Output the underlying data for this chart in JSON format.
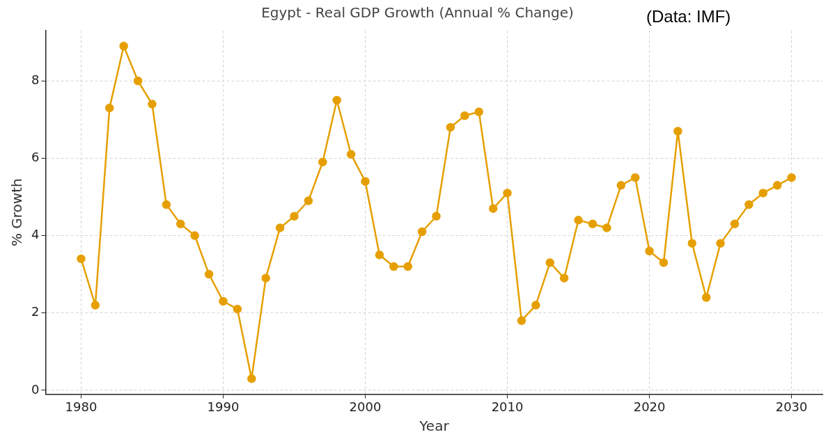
{
  "chart_data": {
    "type": "line",
    "title": "Egypt - Real GDP Growth (Annual % Change)",
    "xlabel": "Year",
    "ylabel": "% Growth",
    "annotations": [
      "(Data: IMF)"
    ],
    "x": [
      1980,
      1981,
      1982,
      1983,
      1984,
      1985,
      1986,
      1987,
      1988,
      1989,
      1990,
      1991,
      1992,
      1993,
      1994,
      1995,
      1996,
      1997,
      1998,
      1999,
      2000,
      2001,
      2002,
      2003,
      2004,
      2005,
      2006,
      2007,
      2008,
      2009,
      2010,
      2011,
      2012,
      2013,
      2014,
      2015,
      2016,
      2017,
      2018,
      2019,
      2020,
      2021,
      2022,
      2023,
      2024,
      2025,
      2026,
      2027,
      2028,
      2029,
      2030
    ],
    "series": [
      {
        "color": "#e69f00",
        "values": [
          3.4,
          2.2,
          7.3,
          8.9,
          8.0,
          7.4,
          4.8,
          4.3,
          4.0,
          3.0,
          2.3,
          2.1,
          0.3,
          2.9,
          4.2,
          4.5,
          4.9,
          5.9,
          7.5,
          6.1,
          5.4,
          3.5,
          3.2,
          3.2,
          4.1,
          4.5,
          6.8,
          7.1,
          7.2,
          4.7,
          5.1,
          1.8,
          2.2,
          3.3,
          2.9,
          4.4,
          4.3,
          4.2,
          5.3,
          5.5,
          3.6,
          3.3,
          6.7,
          3.8,
          2.4,
          3.8,
          4.3,
          4.8,
          5.1,
          5.3,
          5.5
        ]
      }
    ],
    "xlim": [
      1977.5,
      2032.2
    ],
    "xticks": [
      1980,
      1990,
      2000,
      2010,
      2020,
      2030
    ],
    "ylim": [
      -0.1,
      9.3
    ],
    "yticks": [
      0,
      2,
      4,
      6,
      8
    ],
    "grid": true,
    "legend": false,
    "marker": "circle",
    "line_style": "solid"
  }
}
